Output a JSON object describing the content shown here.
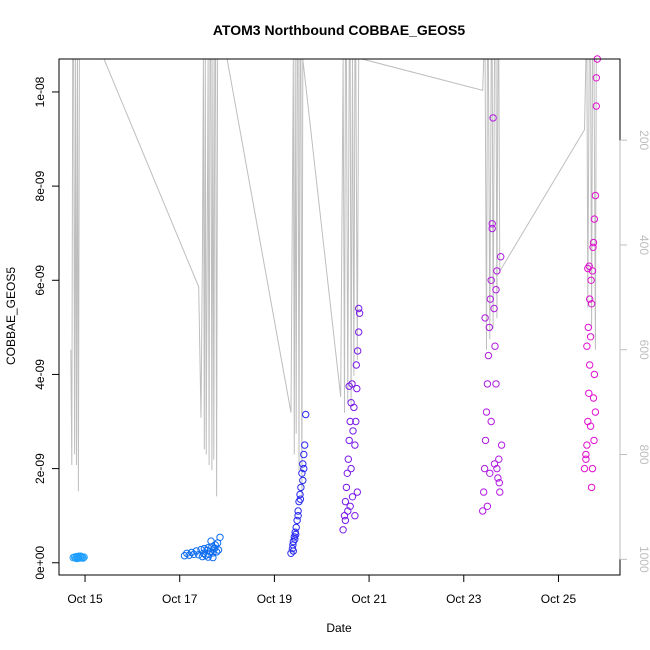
{
  "chart_data": {
    "type": "scatter",
    "title": "ATOM3 Northbound COBBAE_GEOS5",
    "xlabel": "Date",
    "ylabel": "COBBAE_GEOS5",
    "x_ticks": [
      {
        "day": 15,
        "label": "Oct 15"
      },
      {
        "day": 17,
        "label": "Oct 17"
      },
      {
        "day": 19,
        "label": "Oct 19"
      },
      {
        "day": 21,
        "label": "Oct 21"
      },
      {
        "day": 23,
        "label": "Oct 23"
      },
      {
        "day": 25,
        "label": "Oct 25"
      }
    ],
    "y_ticks": [
      {
        "value": 0,
        "label": "0e+00"
      },
      {
        "value": 2e-09,
        "label": "2e-09"
      },
      {
        "value": 4e-09,
        "label": "4e-09"
      },
      {
        "value": 6e-09,
        "label": "6e-09"
      },
      {
        "value": 8e-09,
        "label": "8e-09"
      },
      {
        "value": 1e-08,
        "label": "1e-08"
      }
    ],
    "y2_ticks": [
      {
        "value": 200,
        "label": "200"
      },
      {
        "value": 400,
        "label": "400"
      },
      {
        "value": 600,
        "label": "600"
      },
      {
        "value": 800,
        "label": "800"
      },
      {
        "value": 1000,
        "label": "1000"
      }
    ],
    "xlim": [
      14.45,
      26.3
    ],
    "ylim": [
      -2.6e-10,
      1.07e-08
    ],
    "y2lim": [
      1030,
      45
    ],
    "y2_reversed": true,
    "grid": false,
    "series": [
      {
        "color": "#1f9fff",
        "points": [
          [
            14.75,
            1.1e-10
          ],
          [
            14.78,
            1.2e-10
          ],
          [
            14.8,
            1e-10
          ],
          [
            14.82,
            1.3e-10
          ],
          [
            14.84,
            1.1e-10
          ],
          [
            14.86,
            1.2e-10
          ],
          [
            14.88,
            1e-10
          ],
          [
            14.9,
            1.3e-10
          ],
          [
            14.92,
            1.1e-10
          ],
          [
            14.94,
            1.2e-10
          ],
          [
            14.96,
            1e-10
          ],
          [
            14.98,
            1.2e-10
          ],
          [
            14.87,
            1.4e-10
          ],
          [
            14.83,
            9e-11
          ],
          [
            14.91,
            1.4e-10
          ]
        ]
      },
      {
        "color": "#0e6cf0",
        "points": [
          [
            17.1,
            1.5e-10
          ],
          [
            17.15,
            2e-10
          ],
          [
            17.2,
            1.6e-10
          ],
          [
            17.25,
            2.2e-10
          ],
          [
            17.3,
            1.8e-10
          ],
          [
            17.35,
            2.5e-10
          ],
          [
            17.4,
            1.7e-10
          ],
          [
            17.45,
            2.8e-10
          ],
          [
            17.5,
            2e-10
          ],
          [
            17.52,
            3e-10
          ],
          [
            17.55,
            1.6e-10
          ],
          [
            17.58,
            2.6e-10
          ],
          [
            17.6,
            3.2e-10
          ],
          [
            17.62,
            1.8e-10
          ],
          [
            17.65,
            2.4e-10
          ],
          [
            17.68,
            3.4e-10
          ],
          [
            17.7,
            2.1e-10
          ],
          [
            17.72,
            2.9e-10
          ],
          [
            17.75,
            3.8e-10
          ],
          [
            17.78,
            2.3e-10
          ],
          [
            17.8,
            4.2e-10
          ],
          [
            17.82,
            2.7e-10
          ],
          [
            17.85,
            5.4e-10
          ],
          [
            17.6,
            1.2e-10
          ],
          [
            17.7,
            1.1e-10
          ],
          [
            17.48,
            1.3e-10
          ],
          [
            17.66,
            4.6e-10
          ],
          [
            17.74,
            3.1e-10
          ]
        ]
      },
      {
        "color": "#2a2af0",
        "points": [
          [
            19.35,
            2e-10
          ],
          [
            19.38,
            3e-10
          ],
          [
            19.4,
            4.5e-10
          ],
          [
            19.42,
            5.5e-10
          ],
          [
            19.44,
            6.5e-10
          ],
          [
            19.46,
            7.5e-10
          ],
          [
            19.48,
            9e-10
          ],
          [
            19.5,
            1.1e-09
          ],
          [
            19.52,
            1.3e-09
          ],
          [
            19.54,
            1.45e-09
          ],
          [
            19.56,
            1.6e-09
          ],
          [
            19.58,
            1.9e-09
          ],
          [
            19.6,
            2.1e-09
          ],
          [
            19.62,
            2.3e-09
          ],
          [
            19.64,
            2.5e-09
          ],
          [
            19.66,
            3.15e-09
          ],
          [
            19.4,
            2.5e-10
          ],
          [
            19.45,
            6e-10
          ],
          [
            19.5,
            1e-09
          ],
          [
            19.55,
            1.35e-09
          ],
          [
            19.6,
            1.75e-09
          ],
          [
            19.62,
            2e-09
          ],
          [
            19.39,
            3.8e-10
          ],
          [
            19.43,
            5e-10
          ]
        ]
      },
      {
        "color": "#7a1ae8",
        "points": [
          [
            20.45,
            7e-10
          ],
          [
            20.48,
            1e-09
          ],
          [
            20.5,
            1.3e-09
          ],
          [
            20.52,
            1.6e-09
          ],
          [
            20.54,
            1.9e-09
          ],
          [
            20.56,
            2.2e-09
          ],
          [
            20.58,
            2.6e-09
          ],
          [
            20.6,
            3e-09
          ],
          [
            20.62,
            3.4e-09
          ],
          [
            20.64,
            3.8e-09
          ],
          [
            20.5,
            9e-10
          ],
          [
            20.55,
            1.1e-09
          ],
          [
            20.6,
            1.2e-09
          ],
          [
            20.65,
            1.4e-09
          ],
          [
            20.7,
            2.5e-09
          ],
          [
            20.72,
            3e-09
          ],
          [
            20.74,
            3.7e-09
          ],
          [
            20.76,
            4.5e-09
          ],
          [
            20.78,
            4.9e-09
          ],
          [
            20.8,
            5.3e-09
          ],
          [
            20.78,
            5.4e-09
          ],
          [
            20.7,
            1e-09
          ],
          [
            20.75,
            1.5e-09
          ],
          [
            20.58,
            3.75e-09
          ],
          [
            20.62,
            2e-09
          ],
          [
            20.66,
            2.8e-09
          ],
          [
            20.68,
            3.3e-09
          ],
          [
            20.73,
            4.2e-09
          ]
        ]
      },
      {
        "color": "#b01ae0",
        "points": [
          [
            23.4,
            1.1e-09
          ],
          [
            23.42,
            1.5e-09
          ],
          [
            23.44,
            2e-09
          ],
          [
            23.46,
            2.6e-09
          ],
          [
            23.48,
            3.2e-09
          ],
          [
            23.5,
            3.8e-09
          ],
          [
            23.52,
            4.4e-09
          ],
          [
            23.54,
            5e-09
          ],
          [
            23.56,
            5.6e-09
          ],
          [
            23.58,
            6e-09
          ],
          [
            23.6,
            7.2e-09
          ],
          [
            23.62,
            9.45e-09
          ],
          [
            23.64,
            5.4e-09
          ],
          [
            23.66,
            4.6e-09
          ],
          [
            23.68,
            3.8e-09
          ],
          [
            23.7,
            2e-09
          ],
          [
            23.72,
            1.8e-09
          ],
          [
            23.74,
            2.2e-09
          ],
          [
            23.76,
            1.5e-09
          ],
          [
            23.78,
            6.5e-09
          ],
          [
            23.8,
            2.5e-09
          ],
          [
            23.5,
            1.2e-09
          ],
          [
            23.55,
            1.9e-09
          ],
          [
            23.6,
            7.1e-09
          ],
          [
            23.65,
            2.1e-09
          ],
          [
            23.7,
            6.2e-09
          ],
          [
            23.75,
            1.7e-09
          ],
          [
            23.45,
            5.2e-09
          ],
          [
            23.58,
            3e-09
          ],
          [
            23.68,
            5.8e-09
          ]
        ]
      },
      {
        "color": "#e010d0",
        "points": [
          [
            25.55,
            2e-09
          ],
          [
            25.58,
            2.3e-09
          ],
          [
            25.6,
            2.5e-09
          ],
          [
            25.62,
            3e-09
          ],
          [
            25.64,
            3.6e-09
          ],
          [
            25.66,
            4.2e-09
          ],
          [
            25.68,
            4.8e-09
          ],
          [
            25.7,
            5.5e-09
          ],
          [
            25.72,
            6.2e-09
          ],
          [
            25.74,
            6.8e-09
          ],
          [
            25.76,
            7.3e-09
          ],
          [
            25.78,
            7.8e-09
          ],
          [
            25.8,
            1.03e-08
          ],
          [
            25.82,
            1.08e-08
          ],
          [
            25.65,
            6.3e-09
          ],
          [
            25.7,
            1.6e-09
          ],
          [
            25.72,
            2e-09
          ],
          [
            25.75,
            2.6e-09
          ],
          [
            25.78,
            3.2e-09
          ],
          [
            25.6,
            4.6e-09
          ],
          [
            25.63,
            5e-09
          ],
          [
            25.66,
            5.6e-09
          ],
          [
            25.69,
            6e-09
          ],
          [
            25.73,
            6.7e-09
          ],
          [
            25.76,
            4e-09
          ],
          [
            25.8,
            9.7e-09
          ],
          [
            25.58,
            2.2e-09
          ],
          [
            25.62,
            6.25e-09
          ],
          [
            25.68,
            2.9e-09
          ],
          [
            25.74,
            3.5e-09
          ]
        ]
      }
    ],
    "pressure_line": {
      "color": "#bebebe",
      "points": [
        [
          14.7,
          600
        ],
        [
          14.72,
          820
        ],
        [
          14.74,
          45
        ],
        [
          14.76,
          45
        ],
        [
          14.78,
          800
        ],
        [
          14.8,
          45
        ],
        [
          14.82,
          820
        ],
        [
          14.84,
          45
        ],
        [
          14.86,
          870
        ],
        [
          14.88,
          45
        ],
        [
          14.9,
          45
        ],
        [
          15.4,
          45
        ],
        [
          17.4,
          480
        ],
        [
          17.45,
          730
        ],
        [
          17.48,
          420
        ],
        [
          17.5,
          45
        ],
        [
          17.52,
          790
        ],
        [
          17.54,
          45
        ],
        [
          17.56,
          800
        ],
        [
          17.6,
          45
        ],
        [
          17.62,
          820
        ],
        [
          17.64,
          45
        ],
        [
          17.66,
          45
        ],
        [
          17.68,
          830
        ],
        [
          17.7,
          45
        ],
        [
          17.72,
          810
        ],
        [
          17.74,
          45
        ],
        [
          17.76,
          45
        ],
        [
          17.78,
          880
        ],
        [
          17.8,
          45
        ],
        [
          18.0,
          45
        ],
        [
          19.35,
          720
        ],
        [
          19.4,
          45
        ],
        [
          19.42,
          800
        ],
        [
          19.44,
          45
        ],
        [
          19.46,
          760
        ],
        [
          19.48,
          45
        ],
        [
          19.5,
          45
        ],
        [
          19.52,
          830
        ],
        [
          19.54,
          45
        ],
        [
          19.56,
          45
        ],
        [
          19.58,
          880
        ],
        [
          19.6,
          45
        ],
        [
          20.4,
          690
        ],
        [
          20.45,
          45
        ],
        [
          20.48,
          720
        ],
        [
          20.5,
          45
        ],
        [
          20.52,
          45
        ],
        [
          20.55,
          700
        ],
        [
          20.58,
          45
        ],
        [
          20.6,
          45
        ],
        [
          20.62,
          710
        ],
        [
          20.65,
          45
        ],
        [
          20.68,
          650
        ],
        [
          20.7,
          45
        ],
        [
          20.72,
          45
        ],
        [
          20.75,
          620
        ],
        [
          20.78,
          45
        ],
        [
          20.8,
          45
        ],
        [
          20.85,
          45
        ],
        [
          23.4,
          105
        ],
        [
          23.42,
          45
        ],
        [
          23.45,
          45
        ],
        [
          23.48,
          600
        ],
        [
          23.5,
          45
        ],
        [
          23.52,
          45
        ],
        [
          23.55,
          580
        ],
        [
          23.58,
          45
        ],
        [
          23.6,
          45
        ],
        [
          23.62,
          560
        ],
        [
          23.65,
          45
        ],
        [
          23.68,
          45
        ],
        [
          23.7,
          540
        ],
        [
          23.72,
          45
        ],
        [
          23.74,
          45
        ],
        [
          23.76,
          450
        ],
        [
          25.55,
          180
        ],
        [
          25.58,
          45
        ],
        [
          25.6,
          45
        ],
        [
          25.62,
          520
        ],
        [
          25.65,
          45
        ],
        [
          25.68,
          45
        ],
        [
          25.7,
          560
        ],
        [
          25.72,
          45
        ],
        [
          25.75,
          45
        ],
        [
          25.78,
          600
        ],
        [
          25.8,
          45
        ],
        [
          25.82,
          45
        ],
        [
          25.84,
          45
        ]
      ]
    }
  }
}
